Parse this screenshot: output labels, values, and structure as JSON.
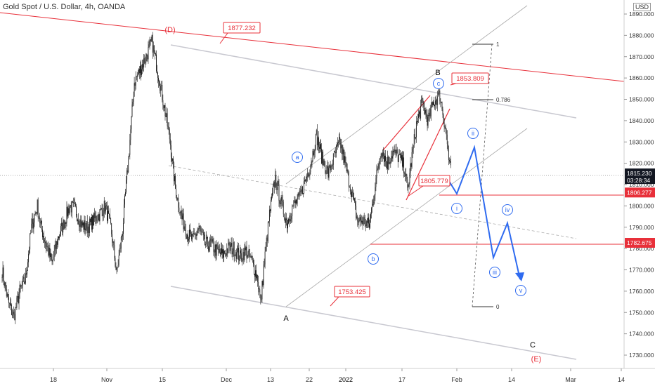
{
  "chart_data": {
    "type": "candlestick",
    "title": "Gold Spot / U.S. Dollar, 4h, OANDA",
    "currency": "USD",
    "ylim": [
      1723,
      1895
    ],
    "y_ticks": [
      1730,
      1740,
      1750,
      1760,
      1770,
      1780,
      1790,
      1800,
      1810,
      1820,
      1830,
      1840,
      1850,
      1860,
      1870,
      1880,
      1890
    ],
    "x_labels": [
      "18",
      "Nov",
      "15",
      "Dec",
      "13",
      "22",
      "2022",
      "17",
      "Feb",
      "14",
      "Mar",
      "14"
    ],
    "current_price": {
      "value": 1815.23,
      "label": "1815.230",
      "countdown": "03:28:34"
    },
    "price_levels": [
      {
        "value": 1806.277,
        "label": "1806.277",
        "color": "#e8303a"
      },
      {
        "value": 1782.675,
        "label": "1782.675",
        "color": "#e8303a"
      }
    ],
    "callouts": [
      "1877.232",
      "1853.809",
      "1805.779",
      "1753.425"
    ],
    "wave_labels": {
      "major": [
        "(D)",
        "(E)",
        "A",
        "B",
        "C"
      ],
      "minor": [
        "a",
        "b",
        "c"
      ],
      "projection": [
        "i",
        "ii",
        "iii",
        "iv",
        "v"
      ]
    },
    "fib_levels": [
      {
        "label": "1",
        "value": 1877
      },
      {
        "label": "0.786",
        "value": 1851
      },
      {
        "label": "0",
        "value": 1754
      }
    ],
    "colors": {
      "candle": "#111111",
      "resistance": "#e8303a",
      "channel": "#b0b0b0",
      "projection": "#2f6bf0",
      "label_circle": "#2f6bf0"
    },
    "price_path": [
      [
        0,
        1770
      ],
      [
        2,
        1755
      ],
      [
        4,
        1748
      ],
      [
        6,
        1760
      ],
      [
        8,
        1766
      ],
      [
        10,
        1790
      ],
      [
        12,
        1800
      ],
      [
        13,
        1791
      ],
      [
        15,
        1782
      ],
      [
        17,
        1773
      ],
      [
        19,
        1785
      ],
      [
        21,
        1792
      ],
      [
        23,
        1800
      ],
      [
        25,
        1798
      ],
      [
        27,
        1791
      ],
      [
        29,
        1790
      ],
      [
        31,
        1793
      ],
      [
        33,
        1796
      ],
      [
        35,
        1800
      ],
      [
        37,
        1790
      ],
      [
        39,
        1768
      ],
      [
        41,
        1789
      ],
      [
        43,
        1822
      ],
      [
        45,
        1858
      ],
      [
        47,
        1864
      ],
      [
        49,
        1870
      ],
      [
        51,
        1877
      ],
      [
        53,
        1863
      ],
      [
        55,
        1848
      ],
      [
        57,
        1832
      ],
      [
        59,
        1808
      ],
      [
        61,
        1795
      ],
      [
        63,
        1787
      ],
      [
        65,
        1784
      ],
      [
        67,
        1790
      ],
      [
        69,
        1782
      ],
      [
        71,
        1782
      ],
      [
        73,
        1779
      ],
      [
        75,
        1777
      ],
      [
        77,
        1780
      ],
      [
        79,
        1780
      ],
      [
        81,
        1776
      ],
      [
        83,
        1779
      ],
      [
        85,
        1774
      ],
      [
        87,
        1766
      ],
      [
        88,
        1754
      ],
      [
        89,
        1770
      ],
      [
        91,
        1796
      ],
      [
        93,
        1813
      ],
      [
        95,
        1801
      ],
      [
        97,
        1792
      ],
      [
        99,
        1800
      ],
      [
        101,
        1803
      ],
      [
        103,
        1811
      ],
      [
        105,
        1820
      ],
      [
        107,
        1833
      ],
      [
        109,
        1822
      ],
      [
        111,
        1815
      ],
      [
        113,
        1823
      ],
      [
        115,
        1830
      ],
      [
        117,
        1818
      ],
      [
        119,
        1806
      ],
      [
        121,
        1793
      ],
      [
        123,
        1793
      ],
      [
        125,
        1791
      ],
      [
        127,
        1810
      ],
      [
        129,
        1827
      ],
      [
        131,
        1820
      ],
      [
        133,
        1825
      ],
      [
        135,
        1823
      ],
      [
        137,
        1818
      ],
      [
        138,
        1807
      ],
      [
        139,
        1818
      ],
      [
        141,
        1838
      ],
      [
        143,
        1848
      ],
      [
        145,
        1840
      ],
      [
        147,
        1849
      ],
      [
        149,
        1852
      ],
      [
        151,
        1836
      ],
      [
        152,
        1822
      ],
      [
        153,
        1814
      ]
    ]
  }
}
